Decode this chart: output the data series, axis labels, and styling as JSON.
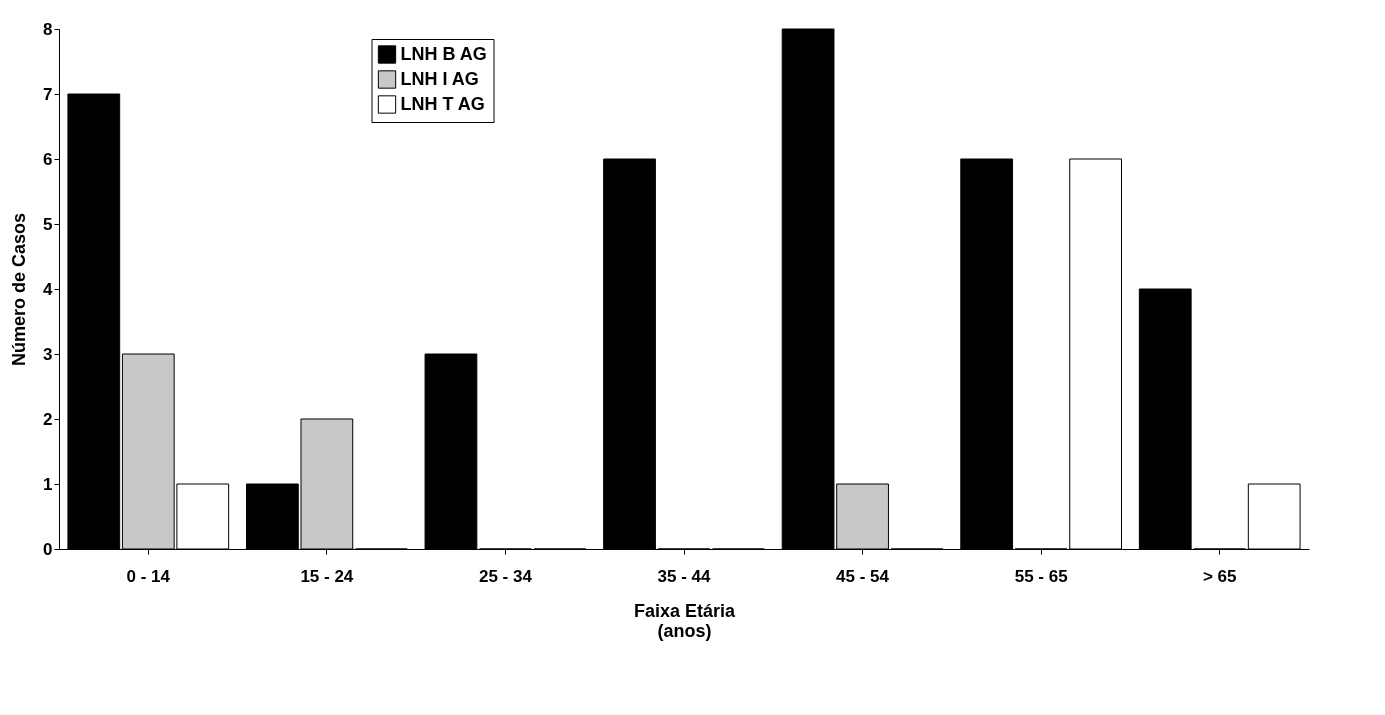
{
  "chart_data": {
    "type": "bar",
    "xlabel": "Faixa Etária\n(anos)",
    "ylabel": "Número de Casos",
    "categories": [
      "0 - 14",
      "15 - 24",
      "25 - 34",
      "35 - 44",
      "45 - 54",
      "55 - 65",
      "> 65"
    ],
    "series": [
      {
        "name": "LNH B AG",
        "color": "#000000",
        "values": [
          7,
          1,
          3,
          6,
          8,
          6,
          4
        ]
      },
      {
        "name": "LNH I AG",
        "color": "#c8c8c8",
        "values": [
          3,
          2,
          0,
          0,
          1,
          0,
          0
        ]
      },
      {
        "name": "LNH T AG",
        "color": "#ffffff",
        "values": [
          1,
          0,
          0,
          0,
          0,
          6,
          1
        ]
      }
    ],
    "ylim": [
      0,
      8
    ],
    "yticks": [
      0,
      1,
      2,
      3,
      4,
      5,
      6,
      7,
      8
    ],
    "grid": false,
    "legend": "top left"
  }
}
